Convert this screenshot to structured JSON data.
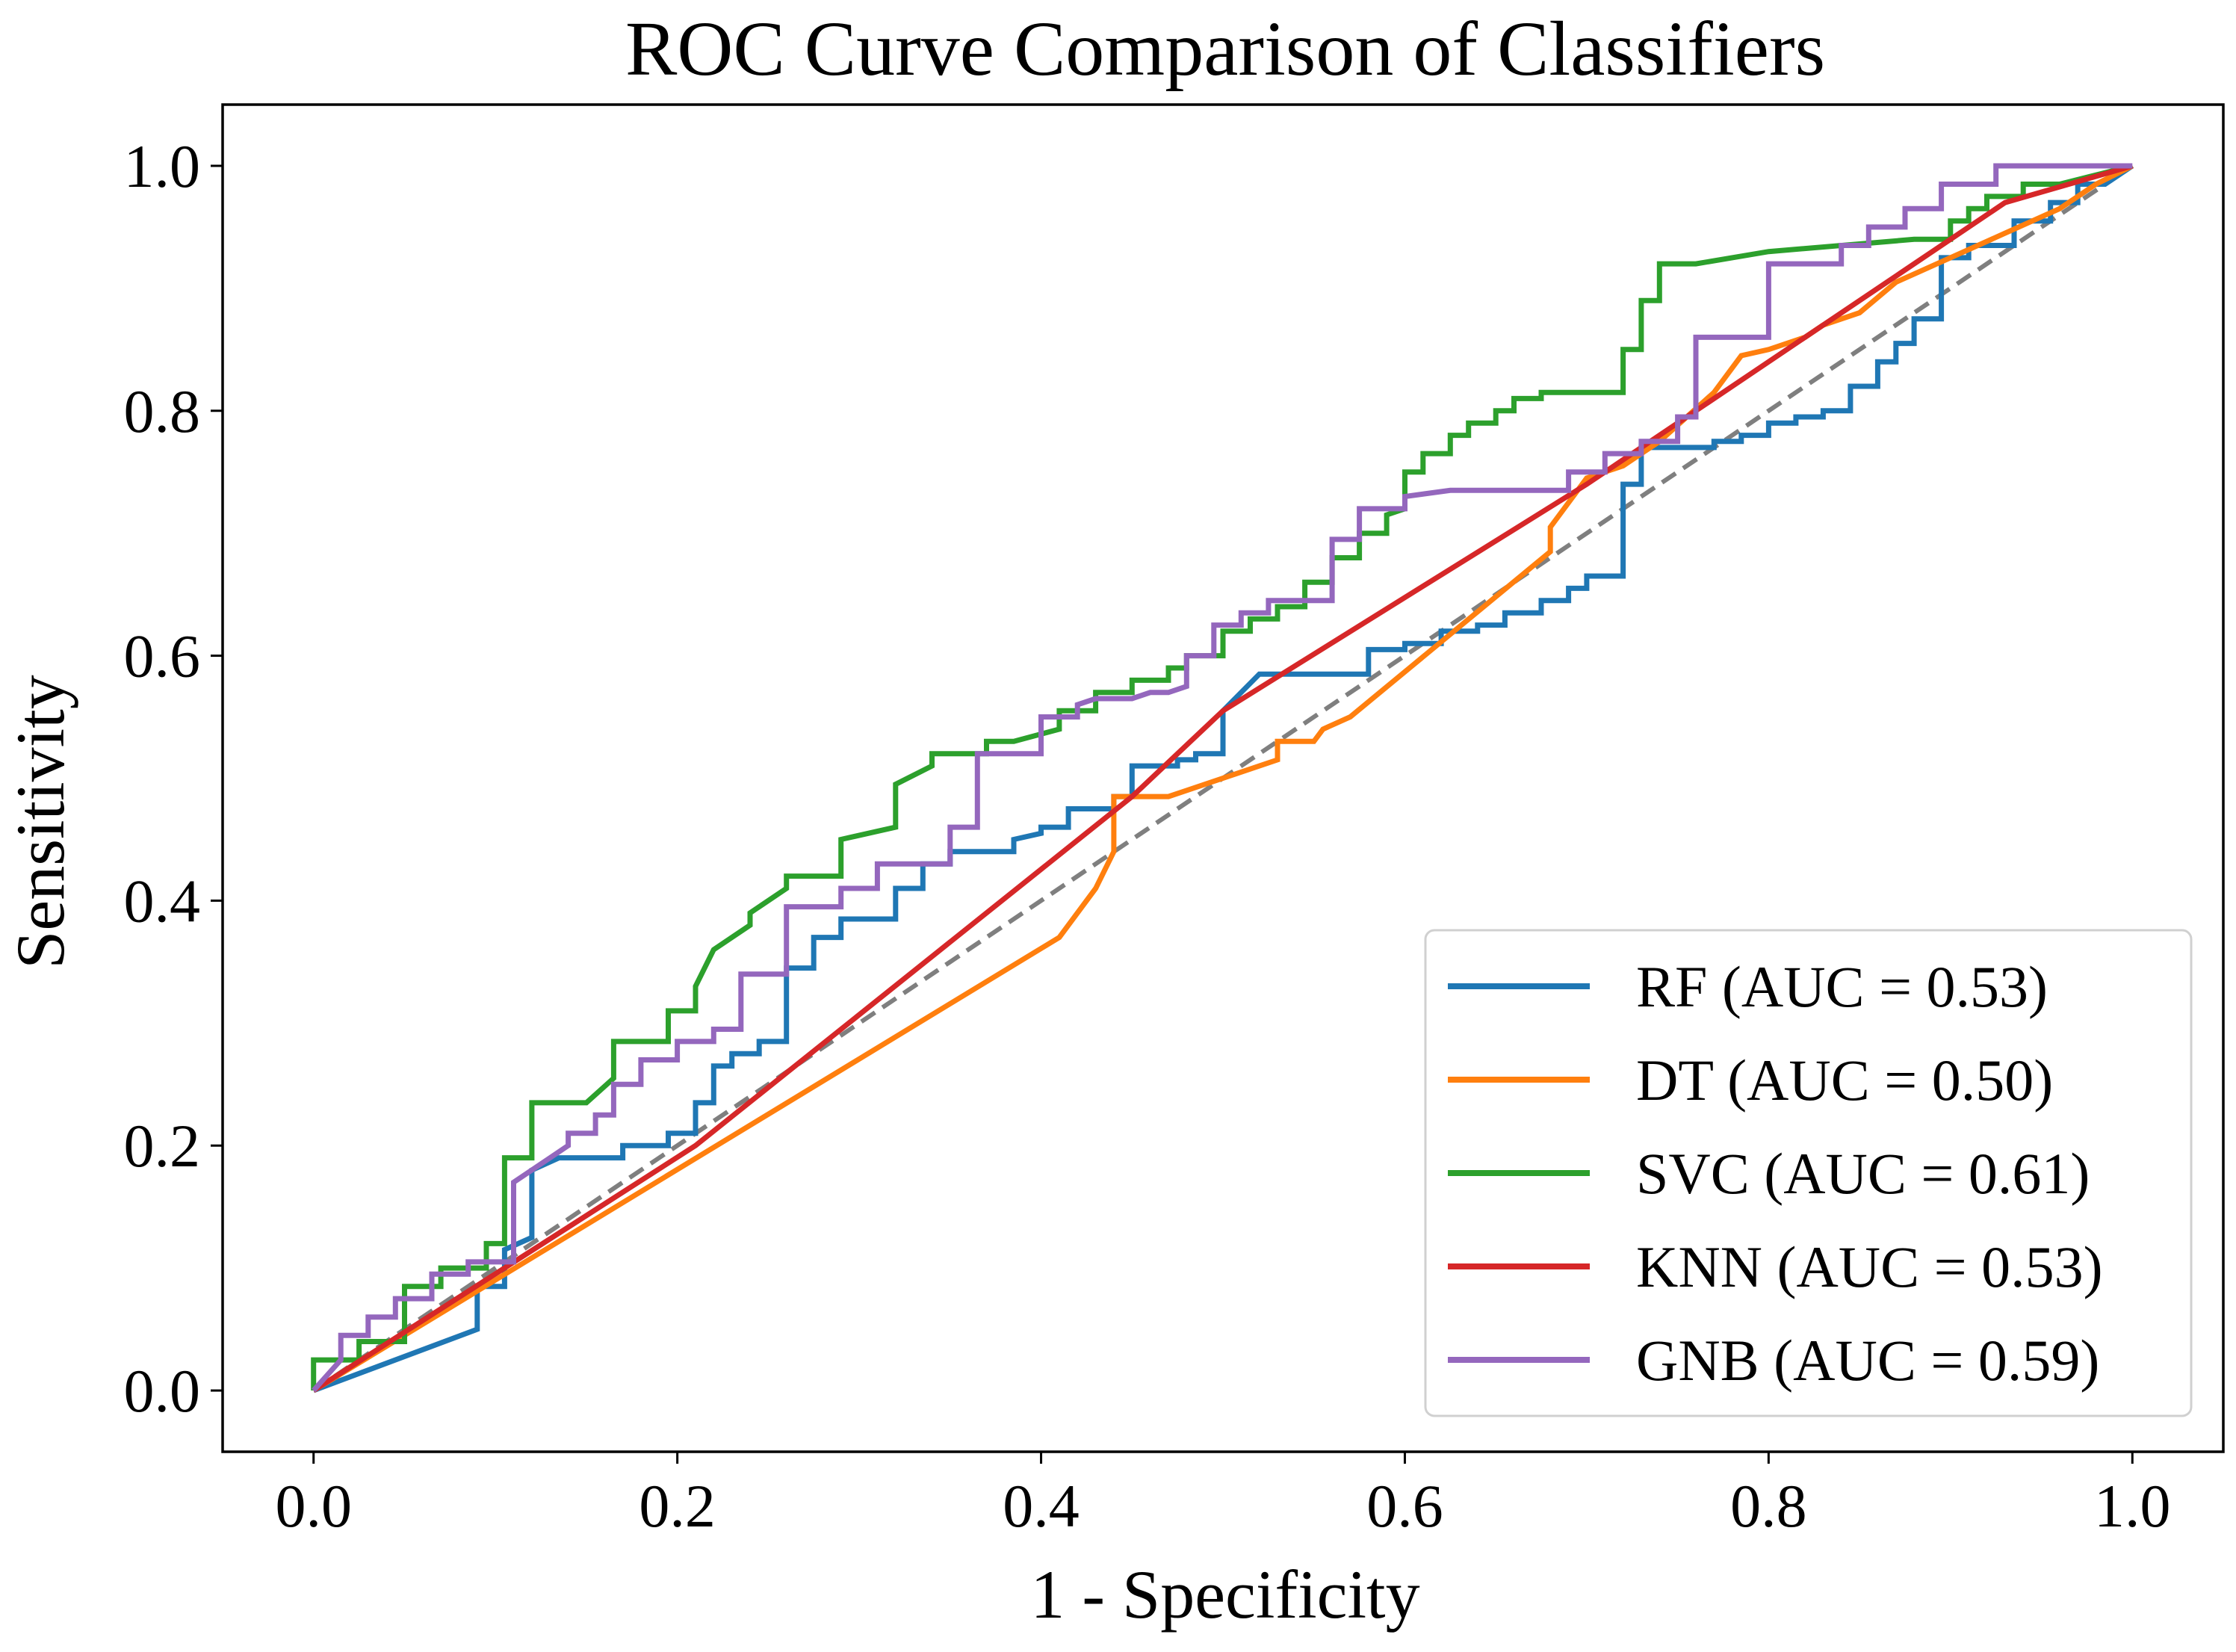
{
  "chart_data": {
    "type": "line",
    "title": "ROC Curve Comparison of Classifiers",
    "xlabel": "1 - Specificity",
    "ylabel": "Sensitivity",
    "xlim": [
      -0.05,
      1.05
    ],
    "ylim": [
      -0.05,
      1.05
    ],
    "xticks": [
      0.0,
      0.2,
      0.4,
      0.6,
      0.8,
      1.0
    ],
    "yticks": [
      0.0,
      0.2,
      0.4,
      0.6,
      0.8,
      1.0
    ],
    "xtick_labels": [
      "0.0",
      "0.2",
      "0.4",
      "0.6",
      "0.8",
      "1.0"
    ],
    "ytick_labels": [
      "0.0",
      "0.2",
      "0.4",
      "0.6",
      "0.8",
      "1.0"
    ],
    "grid": false,
    "legend_position": "lower-right",
    "reference_line": {
      "name": "chance",
      "color": "#7f7f7f",
      "style": "dashed",
      "x": [
        0,
        1
      ],
      "y": [
        0,
        1
      ]
    },
    "series": [
      {
        "name": "RF",
        "label": "RF (AUC = 0.53)",
        "color": "#1f77b4",
        "x": [
          0.0,
          0.09,
          0.09,
          0.105,
          0.105,
          0.12,
          0.12,
          0.135,
          0.17,
          0.17,
          0.195,
          0.195,
          0.21,
          0.21,
          0.22,
          0.22,
          0.23,
          0.23,
          0.245,
          0.245,
          0.26,
          0.26,
          0.275,
          0.275,
          0.29,
          0.29,
          0.32,
          0.32,
          0.335,
          0.335,
          0.35,
          0.35,
          0.37,
          0.385,
          0.385,
          0.4,
          0.4,
          0.415,
          0.415,
          0.44,
          0.44,
          0.45,
          0.45,
          0.475,
          0.475,
          0.485,
          0.485,
          0.5,
          0.5,
          0.52,
          0.545,
          0.545,
          0.58,
          0.58,
          0.6,
          0.6,
          0.62,
          0.62,
          0.64,
          0.64,
          0.655,
          0.655,
          0.675,
          0.675,
          0.69,
          0.69,
          0.7,
          0.7,
          0.72,
          0.72,
          0.73,
          0.73,
          0.77,
          0.77,
          0.785,
          0.785,
          0.8,
          0.8,
          0.815,
          0.815,
          0.83,
          0.83,
          0.845,
          0.845,
          0.86,
          0.86,
          0.87,
          0.87,
          0.88,
          0.88,
          0.895,
          0.895,
          0.91,
          0.91,
          0.935,
          0.935,
          0.955,
          0.955,
          0.97,
          0.97,
          0.985,
          1.0
        ],
        "y": [
          0.0,
          0.05,
          0.085,
          0.085,
          0.115,
          0.125,
          0.18,
          0.19,
          0.19,
          0.2,
          0.2,
          0.21,
          0.21,
          0.235,
          0.235,
          0.265,
          0.265,
          0.275,
          0.275,
          0.285,
          0.285,
          0.345,
          0.345,
          0.37,
          0.37,
          0.385,
          0.385,
          0.41,
          0.41,
          0.43,
          0.43,
          0.44,
          0.44,
          0.44,
          0.45,
          0.455,
          0.46,
          0.46,
          0.475,
          0.475,
          0.485,
          0.485,
          0.51,
          0.51,
          0.515,
          0.515,
          0.52,
          0.52,
          0.555,
          0.585,
          0.585,
          0.585,
          0.585,
          0.605,
          0.605,
          0.61,
          0.61,
          0.62,
          0.62,
          0.625,
          0.625,
          0.635,
          0.635,
          0.645,
          0.645,
          0.655,
          0.655,
          0.665,
          0.665,
          0.74,
          0.74,
          0.77,
          0.77,
          0.775,
          0.775,
          0.78,
          0.78,
          0.79,
          0.79,
          0.795,
          0.795,
          0.8,
          0.8,
          0.82,
          0.82,
          0.84,
          0.84,
          0.855,
          0.855,
          0.875,
          0.875,
          0.925,
          0.925,
          0.935,
          0.935,
          0.955,
          0.955,
          0.97,
          0.97,
          0.985,
          0.985,
          1.0
        ]
      },
      {
        "name": "DT",
        "label": "DT (AUC = 0.50)",
        "color": "#ff7f0e",
        "x": [
          0.0,
          0.41,
          0.43,
          0.44,
          0.44,
          0.47,
          0.48,
          0.48,
          0.53,
          0.53,
          0.55,
          0.555,
          0.57,
          0.68,
          0.68,
          0.69,
          0.7,
          0.72,
          0.73,
          0.74,
          0.77,
          0.785,
          0.8,
          0.82,
          0.83,
          0.85,
          0.87,
          0.9,
          0.93,
          0.96,
          0.98,
          1.0
        ],
        "y": [
          0.0,
          0.37,
          0.41,
          0.44,
          0.485,
          0.485,
          0.49,
          0.49,
          0.515,
          0.53,
          0.53,
          0.54,
          0.55,
          0.685,
          0.705,
          0.725,
          0.745,
          0.755,
          0.765,
          0.775,
          0.815,
          0.845,
          0.85,
          0.86,
          0.87,
          0.88,
          0.905,
          0.925,
          0.945,
          0.965,
          0.985,
          1.0
        ]
      },
      {
        "name": "SVC",
        "label": "SVC (AUC = 0.61)",
        "color": "#2ca02c",
        "x": [
          0.0,
          0.0,
          0.025,
          0.025,
          0.05,
          0.05,
          0.07,
          0.07,
          0.095,
          0.095,
          0.105,
          0.105,
          0.12,
          0.12,
          0.135,
          0.15,
          0.165,
          0.165,
          0.195,
          0.195,
          0.21,
          0.21,
          0.22,
          0.24,
          0.24,
          0.26,
          0.26,
          0.29,
          0.29,
          0.32,
          0.32,
          0.34,
          0.34,
          0.37,
          0.37,
          0.385,
          0.41,
          0.41,
          0.43,
          0.43,
          0.45,
          0.45,
          0.47,
          0.47,
          0.48,
          0.48,
          0.5,
          0.5,
          0.515,
          0.515,
          0.53,
          0.53,
          0.545,
          0.545,
          0.56,
          0.56,
          0.575,
          0.575,
          0.59,
          0.59,
          0.6,
          0.6,
          0.61,
          0.61,
          0.625,
          0.625,
          0.635,
          0.635,
          0.65,
          0.65,
          0.66,
          0.66,
          0.675,
          0.675,
          0.69,
          0.72,
          0.72,
          0.73,
          0.73,
          0.74,
          0.74,
          0.76,
          0.76,
          0.8,
          0.8,
          0.88,
          0.9,
          0.9,
          0.91,
          0.91,
          0.92,
          0.92,
          0.94,
          0.94,
          0.96,
          1.0
        ],
        "y": [
          0.0,
          0.025,
          0.025,
          0.04,
          0.04,
          0.085,
          0.085,
          0.1,
          0.1,
          0.12,
          0.12,
          0.19,
          0.19,
          0.235,
          0.235,
          0.235,
          0.255,
          0.285,
          0.285,
          0.31,
          0.31,
          0.33,
          0.36,
          0.38,
          0.39,
          0.41,
          0.42,
          0.42,
          0.45,
          0.46,
          0.495,
          0.51,
          0.52,
          0.52,
          0.53,
          0.53,
          0.54,
          0.555,
          0.555,
          0.57,
          0.57,
          0.58,
          0.58,
          0.59,
          0.59,
          0.6,
          0.6,
          0.62,
          0.62,
          0.63,
          0.63,
          0.64,
          0.64,
          0.66,
          0.66,
          0.68,
          0.68,
          0.7,
          0.7,
          0.715,
          0.72,
          0.75,
          0.75,
          0.765,
          0.765,
          0.78,
          0.78,
          0.79,
          0.79,
          0.8,
          0.8,
          0.81,
          0.81,
          0.815,
          0.815,
          0.815,
          0.85,
          0.85,
          0.89,
          0.89,
          0.92,
          0.92,
          0.92,
          0.93,
          0.93,
          0.94,
          0.94,
          0.955,
          0.955,
          0.965,
          0.965,
          0.975,
          0.975,
          0.985,
          0.985,
          1.0
        ]
      },
      {
        "name": "KNN",
        "label": "KNN (AUC = 0.53)",
        "color": "#d62728",
        "x": [
          0.0,
          0.21,
          0.45,
          0.5,
          0.7,
          0.87,
          0.93,
          1.0
        ],
        "y": [
          0.0,
          0.2,
          0.485,
          0.555,
          0.74,
          0.91,
          0.97,
          1.0
        ],
        "x_note": ""
      },
      {
        "name": "GNB",
        "label": "GNB (AUC = 0.59)",
        "color": "#9467bd",
        "x": [
          0.0,
          0.015,
          0.015,
          0.03,
          0.03,
          0.045,
          0.045,
          0.065,
          0.065,
          0.085,
          0.085,
          0.11,
          0.11,
          0.13,
          0.14,
          0.14,
          0.155,
          0.155,
          0.165,
          0.165,
          0.18,
          0.18,
          0.2,
          0.2,
          0.22,
          0.22,
          0.235,
          0.235,
          0.26,
          0.26,
          0.29,
          0.29,
          0.31,
          0.31,
          0.35,
          0.35,
          0.365,
          0.365,
          0.4,
          0.4,
          0.42,
          0.42,
          0.43,
          0.45,
          0.46,
          0.47,
          0.48,
          0.48,
          0.495,
          0.495,
          0.51,
          0.51,
          0.525,
          0.525,
          0.54,
          0.56,
          0.56,
          0.575,
          0.575,
          0.6,
          0.6,
          0.625,
          0.69,
          0.69,
          0.71,
          0.71,
          0.73,
          0.73,
          0.75,
          0.75,
          0.76,
          0.76,
          0.8,
          0.8,
          0.84,
          0.84,
          0.855,
          0.855,
          0.875,
          0.875,
          0.895,
          0.895,
          0.925,
          0.925,
          1.0
        ],
        "y": [
          0.0,
          0.025,
          0.045,
          0.045,
          0.06,
          0.06,
          0.075,
          0.075,
          0.095,
          0.095,
          0.105,
          0.105,
          0.17,
          0.19,
          0.2,
          0.21,
          0.21,
          0.225,
          0.225,
          0.25,
          0.25,
          0.27,
          0.27,
          0.285,
          0.285,
          0.295,
          0.295,
          0.34,
          0.34,
          0.395,
          0.395,
          0.41,
          0.41,
          0.43,
          0.43,
          0.46,
          0.46,
          0.52,
          0.52,
          0.55,
          0.55,
          0.56,
          0.565,
          0.565,
          0.57,
          0.57,
          0.575,
          0.6,
          0.6,
          0.625,
          0.625,
          0.635,
          0.635,
          0.645,
          0.645,
          0.645,
          0.695,
          0.695,
          0.72,
          0.72,
          0.73,
          0.735,
          0.735,
          0.75,
          0.75,
          0.765,
          0.765,
          0.775,
          0.775,
          0.795,
          0.795,
          0.86,
          0.86,
          0.92,
          0.92,
          0.935,
          0.935,
          0.95,
          0.95,
          0.965,
          0.965,
          0.985,
          0.985,
          1.0,
          1.0
        ]
      }
    ]
  }
}
